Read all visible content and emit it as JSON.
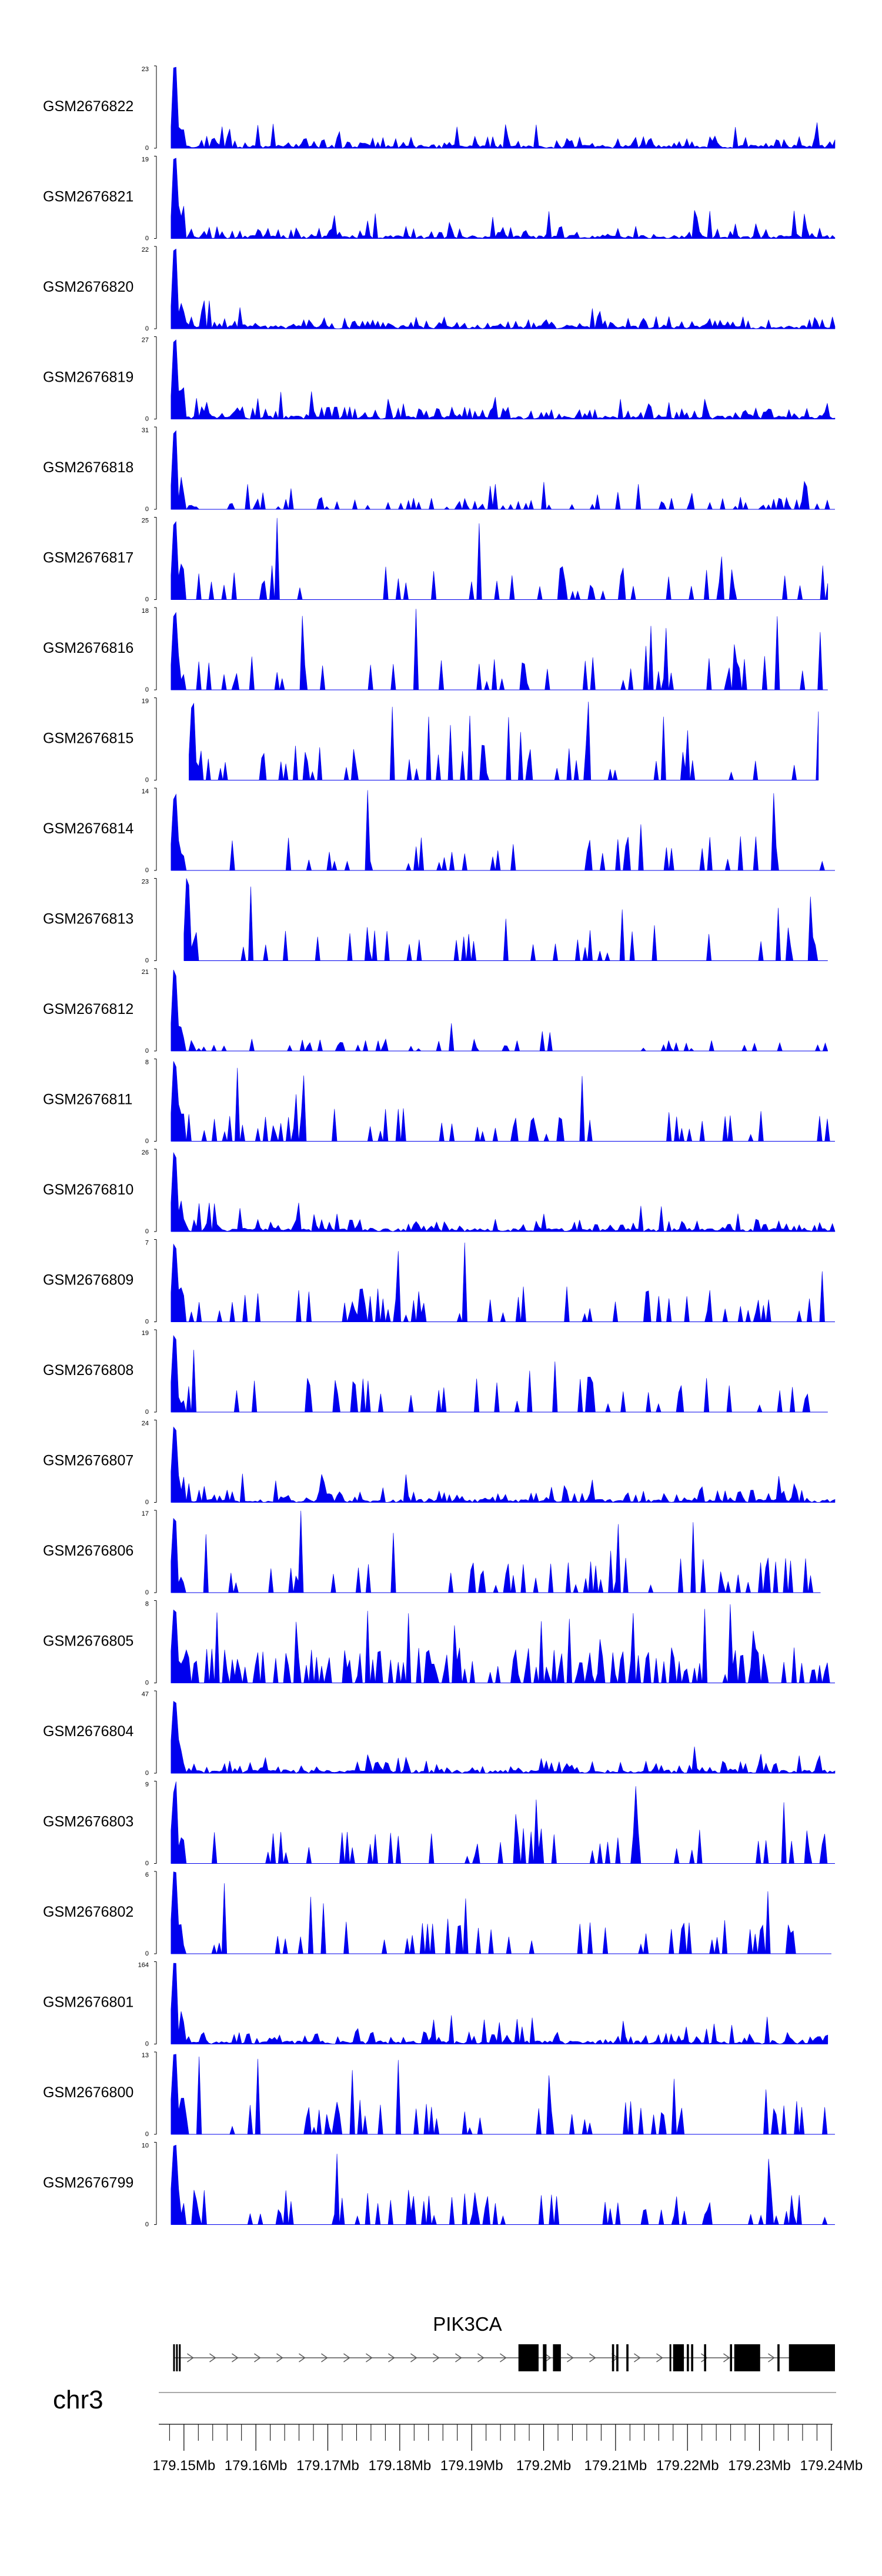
{
  "chart_data": {
    "type": "area",
    "description_axis": "genomic coordinate (Mb) on chr3, coverage tracks",
    "x_range_mb": [
      179.1465,
      179.2405
    ],
    "x_ticks_mb": [
      179.15,
      179.16,
      179.17,
      179.18,
      179.19,
      179.2,
      179.21,
      179.22,
      179.23,
      179.24
    ],
    "x_tick_labels": [
      "179.15Mb",
      "179.16Mb",
      "179.17Mb",
      "179.18Mb",
      "179.19Mb",
      "179.2Mb",
      "179.21Mb",
      "179.22Mb",
      "179.23Mb",
      "179.24Mb"
    ],
    "minor_ticks_per_major": 5,
    "chromosome": "chr3",
    "gene": {
      "name": "PIK3CA",
      "strand": "+",
      "exons_mb": [
        [
          179.1485,
          179.1487
        ],
        [
          179.1489,
          179.1491
        ],
        [
          179.1493,
          179.1495
        ],
        [
          179.1965,
          179.1993
        ],
        [
          179.1999,
          179.2004
        ],
        [
          179.2013,
          179.2024
        ],
        [
          179.2095,
          179.2098
        ],
        [
          179.2101,
          179.2104
        ],
        [
          179.2115,
          179.2118
        ],
        [
          179.2175,
          179.2177
        ],
        [
          179.218,
          179.2195
        ],
        [
          179.2199,
          179.2202
        ],
        [
          179.2205,
          179.2208
        ],
        [
          179.2223,
          179.2226
        ],
        [
          179.2259,
          179.2262
        ],
        [
          179.2265,
          179.2301
        ],
        [
          179.2325,
          179.2328
        ],
        [
          179.2341,
          179.2405
        ]
      ]
    },
    "series": [
      {
        "name": "GSM2676822",
        "ymax": 23,
        "seed": 101,
        "style": "dense",
        "start_mb": 179.1482,
        "end_mb": 179.2405
      },
      {
        "name": "GSM2676821",
        "ymax": 19,
        "seed": 102,
        "style": "dense",
        "start_mb": 179.1482,
        "end_mb": 179.2405
      },
      {
        "name": "GSM2676820",
        "ymax": 22,
        "seed": 103,
        "style": "dense",
        "start_mb": 179.1482,
        "end_mb": 179.2405
      },
      {
        "name": "GSM2676819",
        "ymax": 27,
        "seed": 104,
        "style": "dense",
        "start_mb": 179.1482,
        "end_mb": 179.2405
      },
      {
        "name": "GSM2676818",
        "ymax": 31,
        "seed": 105,
        "style": "medium",
        "start_mb": 179.1482,
        "end_mb": 179.2405
      },
      {
        "name": "GSM2676817",
        "ymax": 25,
        "seed": 106,
        "style": "sparse",
        "start_mb": 179.1482,
        "end_mb": 179.2395
      },
      {
        "name": "GSM2676816",
        "ymax": 18,
        "seed": 107,
        "style": "sparse",
        "start_mb": 179.1482,
        "end_mb": 179.2395
      },
      {
        "name": "GSM2676815",
        "ymax": 19,
        "seed": 108,
        "style": "spiky",
        "start_mb": 179.1507,
        "end_mb": 179.2382
      },
      {
        "name": "GSM2676814",
        "ymax": 14,
        "seed": 109,
        "style": "spiky",
        "start_mb": 179.1482,
        "end_mb": 179.2405
      },
      {
        "name": "GSM2676813",
        "ymax": 23,
        "seed": 110,
        "style": "spiky",
        "start_mb": 179.15,
        "end_mb": 179.2395
      },
      {
        "name": "GSM2676812",
        "ymax": 21,
        "seed": 111,
        "style": "medium",
        "start_mb": 179.1482,
        "end_mb": 179.2395
      },
      {
        "name": "GSM2676811",
        "ymax": 8,
        "seed": 112,
        "style": "sparse",
        "start_mb": 179.1482,
        "end_mb": 179.2405
      },
      {
        "name": "GSM2676810",
        "ymax": 26,
        "seed": 113,
        "style": "dense",
        "start_mb": 179.1482,
        "end_mb": 179.2405
      },
      {
        "name": "GSM2676809",
        "ymax": 7,
        "seed": 114,
        "style": "sparse",
        "start_mb": 179.1482,
        "end_mb": 179.2405
      },
      {
        "name": "GSM2676808",
        "ymax": 19,
        "seed": 115,
        "style": "spiky",
        "start_mb": 179.1482,
        "end_mb": 179.2395
      },
      {
        "name": "GSM2676807",
        "ymax": 24,
        "seed": 116,
        "style": "dense",
        "start_mb": 179.1482,
        "end_mb": 179.2405
      },
      {
        "name": "GSM2676806",
        "ymax": 17,
        "seed": 117,
        "style": "sparse",
        "start_mb": 179.1482,
        "end_mb": 179.2385
      },
      {
        "name": "GSM2676805",
        "ymax": 8,
        "seed": 118,
        "style": "busy",
        "start_mb": 179.1482,
        "end_mb": 179.2405
      },
      {
        "name": "GSM2676804",
        "ymax": 47,
        "seed": 119,
        "style": "dense",
        "start_mb": 179.1482,
        "end_mb": 179.2405
      },
      {
        "name": "GSM2676803",
        "ymax": 9,
        "seed": 120,
        "style": "sparse",
        "start_mb": 179.1482,
        "end_mb": 179.2405
      },
      {
        "name": "GSM2676802",
        "ymax": 6,
        "seed": 121,
        "style": "sparse",
        "start_mb": 179.1482,
        "end_mb": 179.24
      },
      {
        "name": "GSM2676801",
        "ymax": 164,
        "seed": 122,
        "style": "dense",
        "start_mb": 179.1482,
        "end_mb": 179.2395
      },
      {
        "name": "GSM2676800",
        "ymax": 13,
        "seed": 123,
        "style": "sparse",
        "start_mb": 179.1482,
        "end_mb": 179.2405
      },
      {
        "name": "GSM2676799",
        "ymax": 10,
        "seed": 124,
        "style": "sparse",
        "start_mb": 179.1482,
        "end_mb": 179.2405
      }
    ],
    "zero_label": "0",
    "colors": {
      "coverage": "#0000ee",
      "axis": "#000000",
      "gene": "#000000",
      "ideogram": "#aaaaaa"
    }
  }
}
